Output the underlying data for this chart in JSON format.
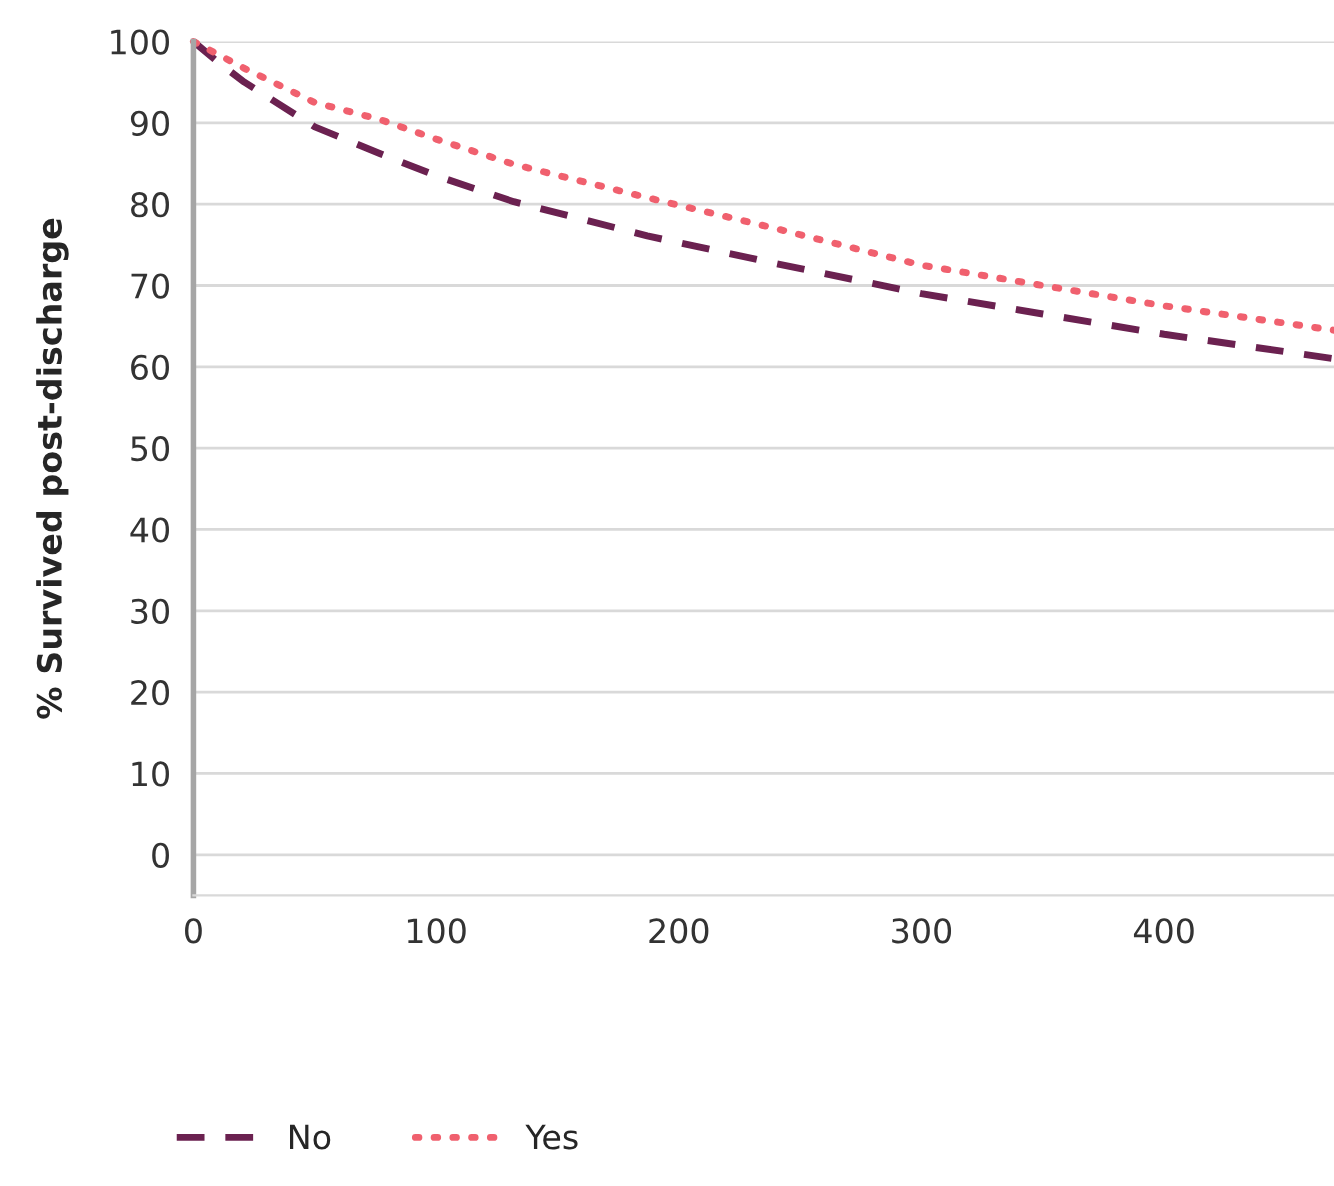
{
  "chart_data": {
    "type": "line",
    "ylabel": "% Survived post-discharge",
    "xlim": [
      0,
      470
    ],
    "xticks": [
      0,
      100,
      200,
      300,
      400
    ],
    "ylim": [
      -5,
      100
    ],
    "yticks": [
      0,
      10,
      20,
      30,
      40,
      50,
      60,
      70,
      80,
      90,
      100
    ],
    "grid": "y",
    "legend": "bottom left",
    "series": [
      {
        "name": "No",
        "color": "#6b2150",
        "line_style": "dashed",
        "x": [
          0,
          10,
          21,
          50,
          77,
          100,
          132,
          187,
          240,
          300,
          350,
          400,
          470
        ],
        "values": [
          100,
          97.5,
          95,
          89.5,
          86.2,
          83.5,
          80.3,
          76.1,
          72.7,
          69,
          66.5,
          64,
          61
        ]
      },
      {
        "name": "Yes",
        "color": "#f0606e",
        "line_style": "dotted",
        "x": [
          0,
          21,
          50,
          77,
          100,
          132,
          187,
          240,
          300,
          350,
          400,
          470
        ],
        "values": [
          100,
          96.7,
          92.5,
          90.4,
          88,
          84.9,
          80.8,
          77,
          72.5,
          70,
          67.5,
          64.5
        ]
      }
    ]
  }
}
